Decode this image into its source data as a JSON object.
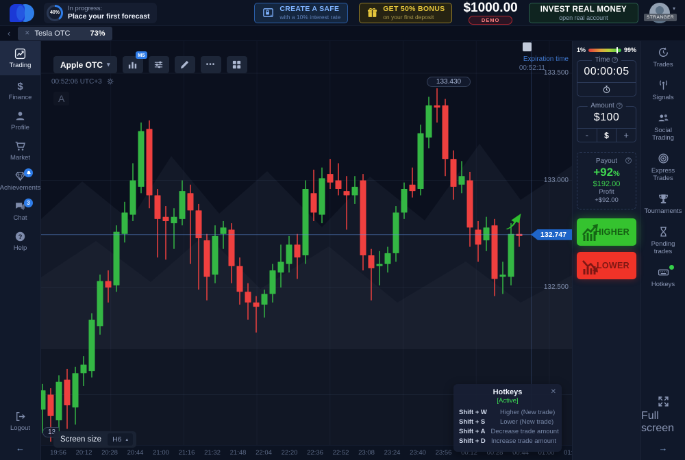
{
  "icons_text": {
    "caret_down": "▾",
    "caret_up": "▴",
    "back": "‹",
    "close": "✕",
    "more": "•••",
    "arrow_left": "←",
    "arrow_right": "→",
    "info": "?"
  },
  "topbar": {
    "progress": {
      "percent": "40%",
      "line1": "In progress:",
      "line2": "Place your first forecast"
    },
    "safe_button": {
      "title": "CREATE A SAFE",
      "subtitle": "with a 10% interest rate"
    },
    "bonus_button": {
      "title": "GET 50% BONUS",
      "subtitle": "on your first deposit"
    },
    "balance": {
      "amount": "$1000.00",
      "badge": "DEMO"
    },
    "invest_button": {
      "title": "INVEST REAL MONEY",
      "subtitle": "open real account"
    },
    "user": {
      "name": "STRANGER"
    }
  },
  "tabbar": {
    "tab": {
      "label": "Tesla OTC",
      "payout": "73%"
    }
  },
  "left_sidebar": {
    "items": [
      {
        "id": "trading",
        "label": "Trading",
        "active": true
      },
      {
        "id": "finance",
        "label": "Finance"
      },
      {
        "id": "profile",
        "label": "Profile"
      },
      {
        "id": "market",
        "label": "Market"
      },
      {
        "id": "achievements",
        "label": "Achievements",
        "badge": "bell"
      },
      {
        "id": "chat",
        "label": "Chat",
        "badge": "3"
      },
      {
        "id": "help",
        "label": "Help"
      }
    ],
    "logout_label": "Logout"
  },
  "toolbar": {
    "asset": "Apple OTC",
    "timeframe": "M5"
  },
  "chart": {
    "clock": "00:52:06 UTC+3",
    "watermark": "A",
    "expiration": {
      "title": "Expiration time",
      "time": "00:52:11"
    },
    "high_label": "133.430",
    "low_label_partial": "13",
    "current_price_label": "132.747",
    "screen_size": {
      "label": "Screen size",
      "value": "H6"
    }
  },
  "chart_data": {
    "type": "candlestick",
    "symbol": "Apple OTC",
    "timeframe": "M5",
    "ylim": [
      131.77,
      133.65
    ],
    "grid_prices": [
      133.5,
      133.0,
      132.5,
      132.0
    ],
    "price_ticks": [
      {
        "label": "133.500",
        "value": 133.5
      },
      {
        "label": "133.000",
        "value": 133.0
      },
      {
        "label": "132.500",
        "value": 132.5
      }
    ],
    "time_labels": [
      "19:56",
      "20:12",
      "20:28",
      "20:44",
      "21:00",
      "21:16",
      "21:32",
      "21:48",
      "22:04",
      "22:20",
      "22:36",
      "22:52",
      "23:08",
      "23:24",
      "23:40",
      "23:56",
      "00:12",
      "00:28",
      "00:44",
      "01:00",
      "01:16"
    ],
    "current_price": 132.747,
    "high_point": 133.43,
    "candles": [
      [
        131.93,
        132.05,
        131.82,
        132.02
      ],
      [
        132.0,
        132.03,
        131.78,
        131.9
      ],
      [
        131.88,
        132.09,
        131.8,
        132.06
      ],
      [
        132.07,
        132.12,
        131.84,
        131.95
      ],
      [
        131.94,
        132.13,
        131.86,
        132.1
      ],
      [
        132.1,
        132.18,
        132.04,
        132.14
      ],
      [
        132.11,
        132.38,
        132.08,
        132.35
      ],
      [
        132.32,
        132.56,
        132.28,
        132.53
      ],
      [
        132.53,
        132.58,
        132.43,
        132.5
      ],
      [
        132.51,
        132.79,
        132.48,
        132.76
      ],
      [
        132.75,
        132.9,
        132.71,
        132.85
      ],
      [
        132.84,
        133.08,
        132.81,
        133.0
      ],
      [
        132.97,
        133.27,
        132.94,
        133.23
      ],
      [
        133.24,
        133.28,
        132.87,
        132.93
      ],
      [
        132.93,
        132.96,
        132.64,
        132.82
      ],
      [
        132.83,
        132.88,
        132.63,
        132.81
      ],
      [
        132.8,
        132.87,
        132.68,
        132.83
      ],
      [
        132.82,
        133.0,
        132.79,
        132.95
      ],
      [
        132.94,
        132.98,
        132.61,
        132.86
      ],
      [
        132.86,
        132.89,
        132.49,
        132.73
      ],
      [
        132.72,
        132.75,
        132.44,
        132.55
      ],
      [
        132.56,
        132.79,
        132.52,
        132.74
      ],
      [
        132.75,
        132.81,
        132.68,
        132.78
      ],
      [
        132.77,
        132.8,
        132.52,
        132.6
      ],
      [
        132.6,
        132.64,
        132.42,
        132.48
      ],
      [
        132.48,
        132.52,
        132.35,
        132.43
      ],
      [
        132.43,
        132.46,
        132.29,
        132.41
      ],
      [
        132.42,
        132.49,
        132.36,
        132.47
      ],
      [
        132.47,
        132.61,
        132.43,
        132.58
      ],
      [
        132.57,
        132.7,
        132.5,
        132.62
      ],
      [
        132.61,
        132.74,
        132.57,
        132.7
      ],
      [
        132.7,
        132.75,
        132.54,
        132.64
      ],
      [
        132.65,
        133.0,
        132.61,
        132.96
      ],
      [
        132.94,
        133.05,
        132.81,
        132.85
      ],
      [
        132.84,
        133.06,
        132.8,
        133.01
      ],
      [
        133.03,
        133.1,
        132.96,
        132.99
      ],
      [
        133.0,
        133.08,
        132.93,
        132.96
      ],
      [
        132.95,
        133.02,
        132.77,
        132.93
      ],
      [
        132.93,
        133.02,
        132.89,
        132.97
      ],
      [
        133.0,
        133.03,
        132.58,
        132.65
      ],
      [
        132.65,
        132.68,
        132.44,
        132.59
      ],
      [
        132.6,
        132.67,
        132.51,
        132.61
      ],
      [
        132.61,
        132.69,
        132.57,
        132.66
      ],
      [
        132.66,
        132.88,
        132.62,
        132.85
      ],
      [
        132.85,
        132.99,
        132.82,
        132.96
      ],
      [
        132.98,
        133.06,
        132.92,
        132.95
      ],
      [
        132.96,
        133.26,
        132.93,
        133.22
      ],
      [
        133.2,
        133.39,
        133.15,
        133.35
      ],
      [
        133.35,
        133.43,
        133.27,
        133.34
      ],
      [
        133.35,
        133.38,
        133.02,
        133.1
      ],
      [
        133.1,
        133.14,
        132.91,
        132.97
      ],
      [
        132.98,
        133.09,
        132.94,
        133.02
      ],
      [
        133.0,
        133.04,
        132.69,
        132.78
      ],
      [
        132.77,
        132.81,
        132.62,
        132.7
      ],
      [
        132.72,
        132.83,
        132.67,
        132.78
      ],
      [
        132.79,
        132.82,
        132.46,
        132.54
      ],
      [
        132.55,
        132.62,
        132.47,
        132.56
      ],
      [
        132.55,
        132.8,
        132.51,
        132.75
      ],
      [
        132.75,
        132.82,
        132.69,
        132.74
      ]
    ]
  },
  "trade_panel": {
    "sentiment": {
      "lower": "1%",
      "higher": "99%"
    },
    "time": {
      "label": "Time",
      "value": "00:00:05"
    },
    "amount": {
      "label": "Amount",
      "value": "$100",
      "minus": "-",
      "currency": "$",
      "plus": "+"
    },
    "payout": {
      "label": "Payout",
      "percent": "+92",
      "percent_suffix": "%",
      "total": "$192.00",
      "profit_label": "Profit",
      "profit": "+$92.00"
    },
    "higher_label": "HIGHER",
    "lower_label": "LOWER"
  },
  "right_sidebar": {
    "items": [
      {
        "id": "trades",
        "label": "Trades"
      },
      {
        "id": "signals",
        "label": "Signals"
      },
      {
        "id": "social",
        "label": "Social Trading"
      },
      {
        "id": "express",
        "label": "Express Trades"
      },
      {
        "id": "tournaments",
        "label": "Tournaments"
      },
      {
        "id": "pending",
        "label": "Pending trades"
      },
      {
        "id": "hotkeys",
        "label": "Hotkeys",
        "dot": true
      }
    ],
    "fullscreen_label": "Full screen"
  },
  "hotkeys_panel": {
    "title": "Hotkeys",
    "status": "[Active]",
    "rows": [
      {
        "keys": "Shift + W",
        "action": "Higher (New trade)"
      },
      {
        "keys": "Shift + S",
        "action": "Lower (New trade)"
      },
      {
        "keys": "Shift + A",
        "action": "Decrease trade amount"
      },
      {
        "keys": "Shift + D",
        "action": "Increase trade amount"
      }
    ]
  }
}
